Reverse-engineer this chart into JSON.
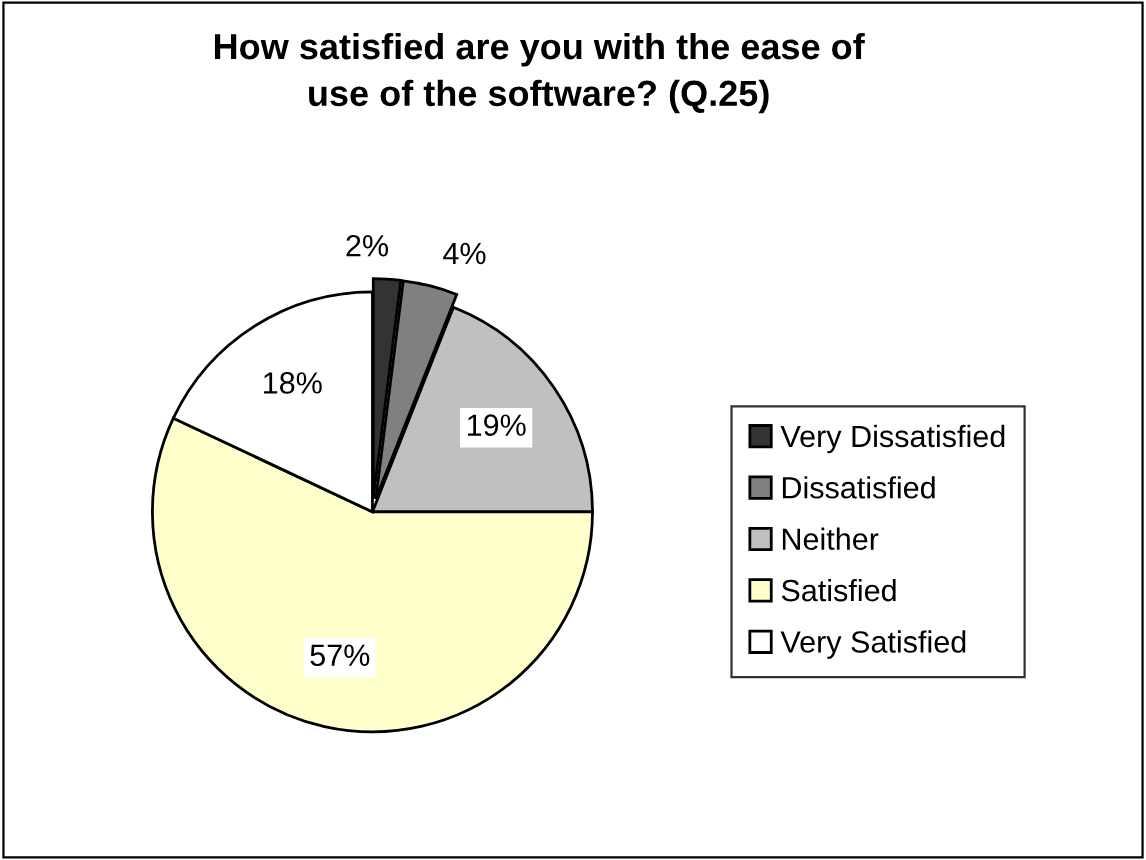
{
  "chart_data": {
    "type": "pie",
    "title": "How satisfied are you with the ease of\nuse of the software? (Q.25)",
    "categories": [
      "Very Dissatisfied",
      "Dissatisfied",
      "Neither",
      "Satisfied",
      "Very Satisfied"
    ],
    "values": [
      2,
      4,
      19,
      57,
      18
    ],
    "colors": [
      "#333333",
      "#808080",
      "#c0c0c0",
      "#ffffcc",
      "#ffffff"
    ],
    "value_labels": [
      "2%",
      "4%",
      "19%",
      "57%",
      "18%"
    ],
    "legend": "right"
  }
}
